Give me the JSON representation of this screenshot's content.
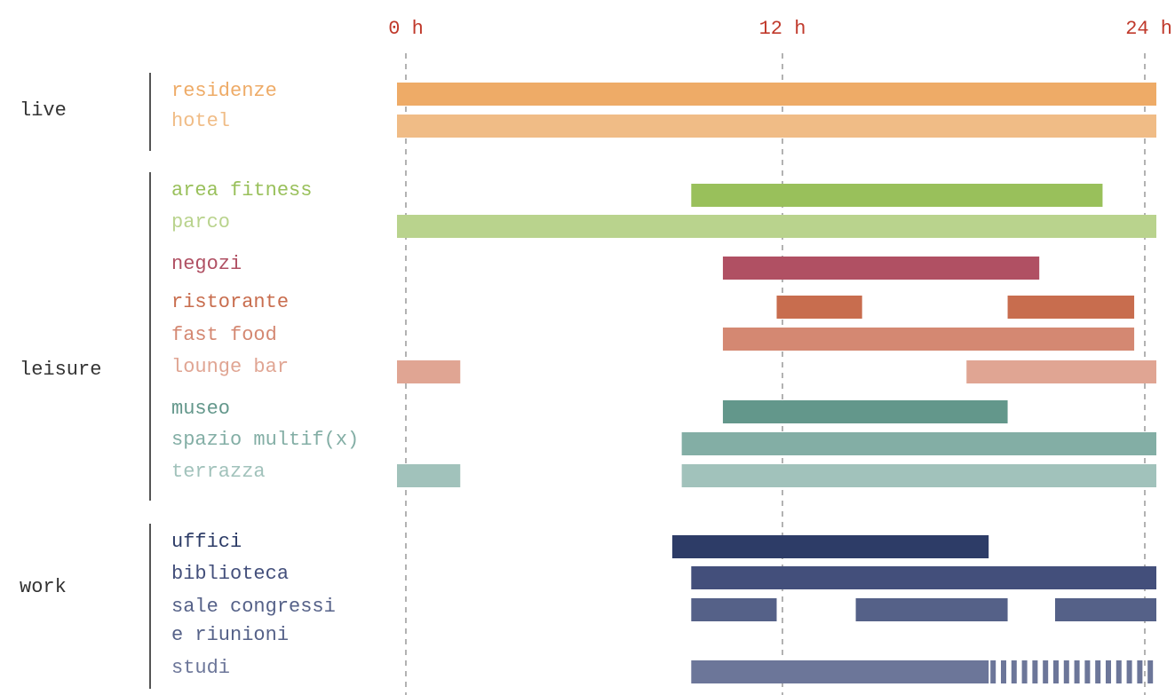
{
  "chart_data": {
    "type": "bar",
    "subtype": "timeline-gantt",
    "title": "",
    "xlabel": "",
    "ylabel": "",
    "x_unit": "hours",
    "xlim": [
      0,
      24
    ],
    "ticks": [
      {
        "value": 0,
        "label": "0 h"
      },
      {
        "value": 12,
        "label": "12 h"
      },
      {
        "value": 24,
        "label": "24 h"
      }
    ],
    "tick_color": "#c0392b",
    "gridlines": "dashed vertical at 0 h, 12 h, 24 h",
    "groups": [
      {
        "name": "live",
        "rows": [
          "residenze",
          "hotel"
        ]
      },
      {
        "name": "leisure",
        "rows": [
          "area fitness",
          "parco",
          "negozi",
          "ristorante",
          "fast food",
          "lounge bar",
          "museo",
          "spazio multif(x)",
          "terrazza"
        ]
      },
      {
        "name": "work",
        "rows": [
          "uffici",
          "biblioteca",
          "sale congressi\ne riunioni",
          "studi"
        ]
      }
    ],
    "rows": [
      {
        "label": "residenze",
        "color": "#eeab67",
        "intervals": [
          [
            0,
            24
          ]
        ]
      },
      {
        "label": "hotel",
        "color": "#f0bc86",
        "intervals": [
          [
            0,
            24
          ]
        ]
      },
      {
        "label": "area fitness",
        "color": "#99c05b",
        "intervals": [
          [
            9.3,
            22.3
          ]
        ]
      },
      {
        "label": "parco",
        "color": "#b9d38d",
        "intervals": [
          [
            0,
            24
          ]
        ]
      },
      {
        "label": "negozi",
        "color": "#b05063",
        "intervals": [
          [
            10.3,
            20.3
          ]
        ]
      },
      {
        "label": "ristorante",
        "color": "#c86d4e",
        "intervals": [
          [
            12,
            14.7
          ],
          [
            19.3,
            23.3
          ]
        ]
      },
      {
        "label": "fast food",
        "color": "#d48872",
        "intervals": [
          [
            10.3,
            23.3
          ]
        ]
      },
      {
        "label": "lounge bar",
        "color": "#e0a593",
        "intervals": [
          [
            0,
            2
          ],
          [
            18,
            24
          ]
        ]
      },
      {
        "label": "museo",
        "color": "#63978b",
        "intervals": [
          [
            10.3,
            19.3
          ]
        ]
      },
      {
        "label": "spazio multif(x)",
        "color": "#83aea5",
        "intervals": [
          [
            9,
            24
          ]
        ]
      },
      {
        "label": "terrazza",
        "color": "#a1c2bb",
        "intervals": [
          [
            0,
            2
          ],
          [
            9,
            24
          ]
        ]
      },
      {
        "label": "uffici",
        "color": "#2d3c67",
        "intervals": [
          [
            8.7,
            18.7
          ]
        ]
      },
      {
        "label": "biblioteca",
        "color": "#434f7b",
        "intervals": [
          [
            9.3,
            24
          ]
        ]
      },
      {
        "label": "sale congressi\ne riunioni",
        "color": "#556188",
        "intervals": [
          [
            9.3,
            12
          ],
          [
            14.5,
            19.3
          ],
          [
            20.8,
            24
          ]
        ]
      },
      {
        "label": "studi",
        "color": "#6c7699",
        "intervals": [
          [
            9.3,
            18.7
          ]
        ],
        "dashed_intervals": [
          [
            18.7,
            24
          ]
        ]
      }
    ]
  }
}
